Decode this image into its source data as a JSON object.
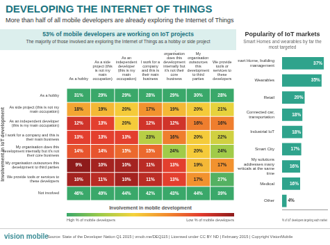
{
  "header": {
    "title": "DEVELOPING THE INTERNET OF THINGS",
    "subtitle": "More than half of all mobile developers are already exploring the Internet of Things"
  },
  "chart_data": [
    {
      "type": "heatmap",
      "title": "53% of mobile developers are working on IoT projects",
      "subtitle": "The majority of those involved are exploring the Internet of Things as a hobby or side project",
      "x_label": "Involvement in mobile development",
      "y_label": "Involvement in IoT development",
      "categories": [
        "As a hobby",
        "As a side project (this is not my main occupation)",
        "As an independent developer (this is my main occupation)",
        "I work for a company and this is their main business",
        "My organisation does this development internally but it's not their core business",
        "My organisation outsources this development to third parties",
        "We provide tools or services to these developers"
      ],
      "rows": [
        "As a hobby",
        "As side project (this is not my main occupation)",
        "As an independent developer (this is my main occupation)",
        "I work for a company and this is their main business",
        "My organisation does this development internally but it's not their core business",
        "My organisation outsources this development to third parties",
        "We provide tools or services to these developers",
        "Not involved"
      ],
      "values": [
        [
          31,
          29,
          29,
          28,
          29,
          30,
          28
        ],
        [
          18,
          19,
          20,
          17,
          19,
          20,
          21
        ],
        [
          12,
          13,
          20,
          12,
          12,
          16,
          16
        ],
        [
          13,
          13,
          13,
          23,
          16,
          20,
          22
        ],
        [
          14,
          14,
          15,
          15,
          24,
          20,
          24
        ],
        [
          9,
          10,
          10,
          11,
          13,
          19,
          17
        ],
        [
          10,
          11,
          10,
          11,
          13,
          17,
          27
        ],
        [
          46,
          49,
          44,
          42,
          43,
          44,
          39
        ]
      ],
      "value_labels": [
        [
          "31%",
          "29%",
          "29%",
          "28%",
          "29%",
          "30%",
          "28%"
        ],
        [
          "18%",
          "19%",
          "20%",
          "17%",
          "19%",
          "20%",
          "21%"
        ],
        [
          "12%",
          "13%",
          "20%",
          "12%",
          "12%",
          "16%",
          "16%"
        ],
        [
          "13%",
          "13%",
          "13%",
          "23%",
          "16%",
          "20%",
          "22%"
        ],
        [
          "14%",
          "14%",
          "15%",
          "15%",
          "24%",
          "20%",
          "24%"
        ],
        [
          "9%",
          "10%",
          "10%",
          "11%",
          "13%",
          "19%",
          "17%"
        ],
        [
          "10%",
          "11%",
          "10%",
          "11%",
          "13%",
          "17%",
          "27%"
        ],
        [
          "46%",
          "49%",
          "44%",
          "42%",
          "43%",
          "44%",
          "39%"
        ]
      ],
      "color_scale": {
        "range": [
          9,
          28
        ],
        "colors": [
          "#8e1b1b",
          "#e23b2e",
          "#f28a2e",
          "#f5d33b",
          "#9ccb4a",
          "#3aa86a"
        ],
        "high_label": "High % of mobile developers",
        "low_label": "Low % of mobile developers"
      }
    },
    {
      "type": "bar",
      "orientation": "horizontal",
      "title": "Popularity of IoT markets",
      "subtitle": "Smart Homes and wearables by far the most targeted",
      "x_label": "% of IoT developers targeting each market",
      "categories": [
        "Smart Home, building management",
        "Wearables",
        "Retail",
        "Connected car, transportation",
        "Industrial IoT",
        "Smart City",
        "My solutions addresses many verticals at the same time",
        "Medical",
        "Other"
      ],
      "values": [
        37,
        35,
        20,
        18,
        18,
        17,
        16,
        16,
        4
      ],
      "value_labels": [
        "37%",
        "35%",
        "20%",
        "18%",
        "18%",
        "17%",
        "16%",
        "16%",
        "4%"
      ],
      "color": "#2fa38c",
      "xlim": [
        0,
        40
      ],
      "grid": false,
      "data_labels": true,
      "tick_labels": "y"
    }
  ],
  "footer": {
    "logo": "vision mobile",
    "source": "Source: State of the Developer Nation Q1 2015 | vmob.me/DEQ115 | Licensed under CC BY ND | February 2015 | Copyright VisionMobile"
  }
}
